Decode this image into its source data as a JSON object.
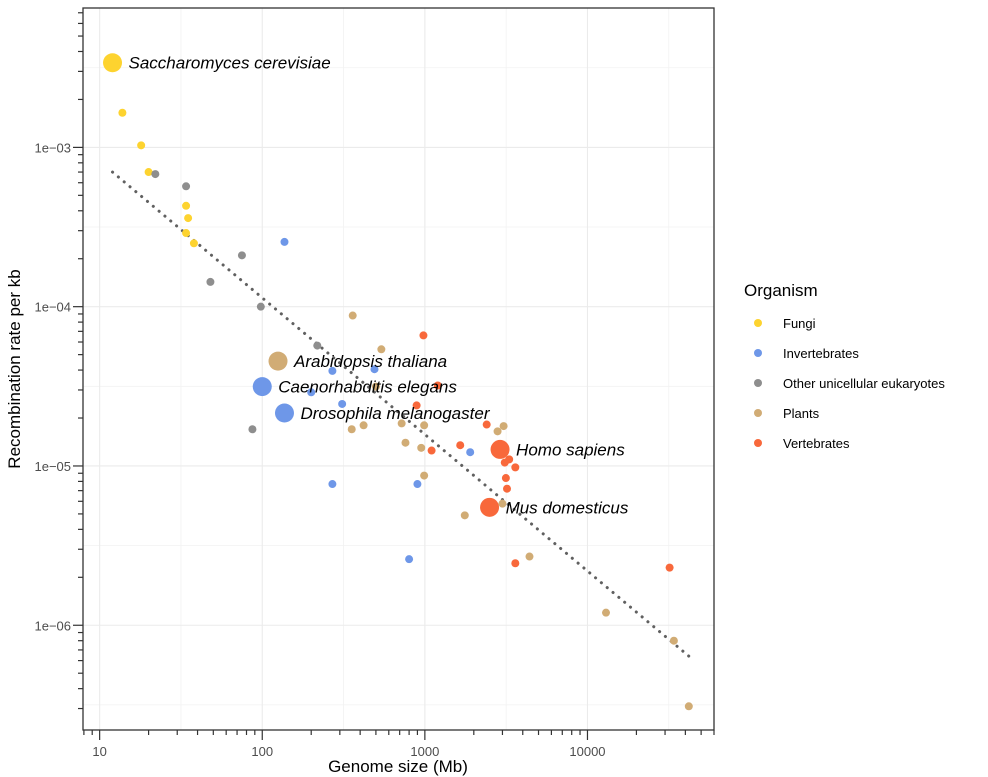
{
  "chart_data": {
    "type": "scatter",
    "xlabel": "Genome size (Mb)",
    "ylabel": "Recombination rate per kb",
    "xscale": "log",
    "yscale": "log",
    "xlim": [
      7.9,
      60000
    ],
    "ylim": [
      2.2e-07,
      0.0075
    ],
    "x_ticks": [
      {
        "value": 10,
        "label": "10"
      },
      {
        "value": 100,
        "label": "100"
      },
      {
        "value": 1000,
        "label": "1000"
      },
      {
        "value": 10000,
        "label": "10000"
      }
    ],
    "y_ticks": [
      {
        "value": 1e-06,
        "label": "1e−06"
      },
      {
        "value": 1e-05,
        "label": "1e−05"
      },
      {
        "value": 0.0001,
        "label": "1e−04"
      },
      {
        "value": 0.001,
        "label": "1e−03"
      }
    ],
    "grid": true,
    "legend": {
      "title": "Organism",
      "placement": "right",
      "entries": [
        {
          "name": "Fungi",
          "color": "#FDD32F"
        },
        {
          "name": "Invertebrates",
          "color": "#6E97E8"
        },
        {
          "name": "Other unicellular eukaryotes",
          "color": "#8E8E8E"
        },
        {
          "name": "Plants",
          "color": "#D1AC75"
        },
        {
          "name": "Vertebrates",
          "color": "#F8683B"
        }
      ]
    },
    "trend_line": {
      "style": "dotted",
      "color": "#606060",
      "x": [
        12,
        42000
      ],
      "y": [
        0.0007,
        6.4e-07
      ]
    },
    "series": [
      {
        "name": "Fungi",
        "points": [
          [
            12,
            0.0034
          ],
          [
            13.8,
            0.00165
          ],
          [
            18,
            0.00103
          ],
          [
            20,
            0.0007
          ],
          [
            34,
            0.00043
          ],
          [
            35,
            0.00036
          ],
          [
            34,
            0.00029
          ],
          [
            38,
            0.00025
          ]
        ]
      },
      {
        "name": "Invertebrates",
        "points": [
          [
            100,
            3.15e-05
          ],
          [
            137,
            2.15e-05
          ],
          [
            137,
            0.000255
          ],
          [
            270,
            3.95e-05
          ],
          [
            200,
            2.9e-05
          ],
          [
            310,
            2.45e-05
          ],
          [
            490,
            4.05e-05
          ],
          [
            270,
            7.7e-06
          ],
          [
            900,
            7.7e-06
          ],
          [
            1900,
            1.22e-05
          ],
          [
            800,
            2.6e-06
          ]
        ]
      },
      {
        "name": "Other unicellular eukaryotes",
        "points": [
          [
            22,
            0.00068
          ],
          [
            34,
            0.00057
          ],
          [
            75,
            0.00021
          ],
          [
            48,
            0.000143
          ],
          [
            98,
            0.0001
          ],
          [
            218,
            5.7e-05
          ],
          [
            87,
            1.7e-05
          ]
        ]
      },
      {
        "name": "Plants",
        "points": [
          [
            125,
            4.55e-05
          ],
          [
            360,
            8.8e-05
          ],
          [
            540,
            5.4e-05
          ],
          [
            500,
            3.15e-05
          ],
          [
            355,
            1.7e-05
          ],
          [
            420,
            1.8e-05
          ],
          [
            720,
            1.85e-05
          ],
          [
            760,
            1.4e-05
          ],
          [
            950,
            1.3e-05
          ],
          [
            990,
            1.8e-05
          ],
          [
            990,
            8.7e-06
          ],
          [
            1760,
            4.9e-06
          ],
          [
            2800,
            1.65e-05
          ],
          [
            3050,
            1.78e-05
          ],
          [
            3000,
            5.8e-06
          ],
          [
            4400,
            2.7e-06
          ],
          [
            13000,
            1.2e-06
          ],
          [
            34000,
            8e-07
          ],
          [
            42000,
            3.1e-07
          ]
        ]
      },
      {
        "name": "Vertebrates",
        "points": [
          [
            980,
            6.6e-05
          ],
          [
            1200,
            3.2e-05
          ],
          [
            890,
            2.4e-05
          ],
          [
            1100,
            1.25e-05
          ],
          [
            1650,
            1.35e-05
          ],
          [
            2400,
            1.82e-05
          ],
          [
            2900,
            1.27e-05
          ],
          [
            3300,
            1.1e-05
          ],
          [
            3100,
            1.05e-05
          ],
          [
            3600,
            9.8e-06
          ],
          [
            3150,
            8.4e-06
          ],
          [
            3200,
            7.2e-06
          ],
          [
            2500,
            5.5e-06
          ],
          [
            3600,
            2.45e-06
          ],
          [
            32000,
            2.3e-06
          ]
        ]
      }
    ],
    "highlighted": [
      {
        "label": "Saccharomyces cerevisiae",
        "group": "Fungi",
        "x": 12,
        "y": 0.0034
      },
      {
        "label": "Arabidopsis thaliana",
        "group": "Plants",
        "x": 125,
        "y": 4.55e-05
      },
      {
        "label": "Caenorhabditis elegans",
        "group": "Invertebrates",
        "x": 100,
        "y": 3.15e-05
      },
      {
        "label": "Drosophila melanogaster",
        "group": "Invertebrates",
        "x": 137,
        "y": 2.15e-05
      },
      {
        "label": "Homo sapiens",
        "group": "Vertebrates",
        "x": 2900,
        "y": 1.27e-05
      },
      {
        "label": "Mus domesticus",
        "group": "Vertebrates",
        "x": 2500,
        "y": 5.5e-06
      }
    ]
  }
}
